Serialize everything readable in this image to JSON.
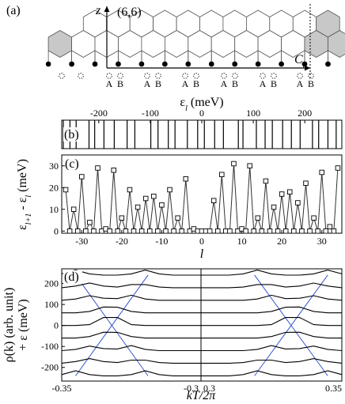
{
  "diagram": {
    "label": "(a)",
    "axis": "z",
    "index": "(6,6)",
    "vector": "C",
    "vector_sub": "h",
    "sites": [
      "A",
      "B"
    ]
  },
  "chart_data": [
    {
      "type": "spectrum",
      "panel_label": "(b)",
      "xlabel": [
        {
          "text": "ε"
        },
        {
          "text": "l",
          "sub": true
        },
        {
          "text": " (meV)"
        }
      ],
      "values": [
        -269,
        -256,
        -244,
        -219,
        -208,
        -190,
        -170,
        -145,
        -130,
        -99,
        -85,
        -65,
        -52,
        -28,
        -8,
        5,
        25,
        42,
        71,
        80,
        106,
        123,
        137,
        157,
        174,
        191,
        215,
        227,
        245,
        261
      ],
      "color": "#000000",
      "xlim": [
        -272,
        272
      ],
      "xticks": [
        -200,
        -100,
        0,
        100,
        200
      ]
    },
    {
      "type": "line",
      "panel_label": "(c)",
      "ylabel": [
        {
          "text": "ε"
        },
        {
          "text": "l+1",
          "sub": true
        },
        {
          "text": " - ε"
        },
        {
          "text": "l",
          "sub": true
        },
        {
          "text": " (meV)"
        }
      ],
      "xlabel": "l",
      "x": [
        -34,
        -33,
        -32,
        -31,
        -30,
        -29,
        -28,
        -27,
        -26,
        -25,
        -24,
        -23,
        -22,
        -21,
        -20,
        -19,
        -18,
        -17,
        -16,
        -15,
        -14,
        -13,
        -12,
        -11,
        -10,
        -9,
        -8,
        -7,
        -6,
        -5,
        -4,
        -3,
        -2,
        -1,
        0,
        1,
        2,
        3,
        4,
        5,
        6,
        7,
        8,
        9,
        10,
        11,
        12,
        13,
        14,
        15,
        16,
        17,
        18,
        19,
        20,
        21,
        22,
        23,
        24,
        25,
        26,
        27,
        28,
        29,
        30,
        31,
        32,
        33,
        34
      ],
      "values": [
        19,
        0,
        10,
        0,
        25,
        0,
        4,
        0,
        29,
        0,
        1,
        0,
        28,
        0,
        6,
        0,
        19,
        0,
        11,
        0,
        15,
        0,
        16,
        0,
        12,
        0,
        19,
        0,
        6,
        0,
        24,
        0,
        1,
        0,
        0,
        0,
        0,
        14,
        0,
        26,
        0,
        0,
        31,
        0,
        1,
        0,
        30,
        0,
        6,
        0,
        23,
        0,
        11,
        0,
        17,
        0,
        18,
        0,
        13,
        0,
        22,
        0,
        6,
        0,
        27,
        0,
        2,
        0,
        29
      ],
      "color": "#333333",
      "xlim": [
        -35,
        35
      ],
      "xticks": [
        -30,
        -20,
        -10,
        0,
        10,
        20,
        30
      ],
      "ylim": [
        -1,
        35
      ],
      "yticks": [
        0,
        10,
        20,
        30
      ]
    },
    {
      "type": "curves",
      "panel_label": "(d)",
      "ylabel": [
        "ρ(k) (arb. unit)",
        "+ ε (meV)"
      ],
      "xlabel": "kT/2π",
      "x": [
        -0.35,
        -0.345,
        -0.34,
        -0.335,
        -0.33,
        -0.325,
        -0.32,
        -0.315,
        -0.31,
        -0.305,
        -0.3,
        0.3,
        0.305,
        0.31,
        0.315,
        0.32,
        0.325,
        0.33,
        0.335,
        0.34,
        0.345,
        0.35
      ],
      "series": [
        {
          "color": "#000000",
          "values": [
            246,
            264,
            246,
            240,
            240,
            246,
            264,
            246,
            240,
            240,
            240,
            240,
            240,
            240,
            246,
            264,
            246,
            240,
            240,
            246,
            264,
            246
          ]
        },
        {
          "color": "#000000",
          "values": [
            180,
            188,
            202,
            188,
            183,
            195,
            195,
            183,
            180,
            180,
            180,
            180,
            180,
            180,
            183,
            195,
            195,
            183,
            188,
            202,
            188,
            180
          ]
        },
        {
          "color": "#000000",
          "values": [
            120,
            126,
            142,
            130,
            128,
            144,
            126,
            120,
            120,
            120,
            120,
            120,
            120,
            120,
            120,
            126,
            144,
            128,
            130,
            142,
            126,
            120
          ]
        },
        {
          "color": "#000000",
          "values": [
            60,
            60,
            67,
            88,
            87,
            67,
            60,
            60,
            60,
            60,
            60,
            60,
            60,
            60,
            60,
            60,
            67,
            87,
            88,
            67,
            60,
            60
          ]
        },
        {
          "color": "#000000",
          "values": [
            0,
            0,
            4,
            38,
            38,
            4,
            0,
            0,
            0,
            0,
            0,
            0,
            0,
            0,
            0,
            0,
            4,
            38,
            38,
            4,
            0,
            0
          ]
        },
        {
          "color": "#000000",
          "values": [
            -60,
            -60,
            -53,
            -32,
            -33,
            -53,
            -60,
            -60,
            -60,
            -60,
            -60,
            -60,
            -60,
            -60,
            -60,
            -60,
            -53,
            -33,
            -32,
            -53,
            -60,
            -60
          ]
        },
        {
          "color": "#000000",
          "values": [
            -120,
            -114,
            -98,
            -110,
            -112,
            -96,
            -114,
            -120,
            -120,
            -120,
            -120,
            -120,
            -120,
            -120,
            -120,
            -114,
            -96,
            -112,
            -110,
            -98,
            -114,
            -120
          ]
        },
        {
          "color": "#000000",
          "values": [
            -180,
            -172,
            -158,
            -172,
            -177,
            -165,
            -165,
            -177,
            -180,
            -180,
            -180,
            -180,
            -180,
            -180,
            -177,
            -165,
            -165,
            -177,
            -172,
            -158,
            -172,
            -180
          ]
        },
        {
          "color": "#000000",
          "values": [
            -234,
            -216,
            -234,
            -240,
            -240,
            -234,
            -216,
            -234,
            -240,
            -240,
            -240,
            -240,
            -240,
            -240,
            -234,
            -216,
            -234,
            -240,
            -240,
            -234,
            -216,
            -234
          ]
        }
      ],
      "guides": [
        {
          "color": "#3355cc",
          "x": [
            -0.345,
            -0.319
          ],
          "y": [
            240,
            -240
          ]
        },
        {
          "color": "#3355cc",
          "x": [
            -0.319,
            -0.345
          ],
          "y": [
            240,
            -240
          ]
        },
        {
          "color": "#3355cc",
          "x": [
            0.345,
            0.319
          ],
          "y": [
            240,
            -240
          ]
        },
        {
          "color": "#3355cc",
          "x": [
            0.319,
            0.345
          ],
          "y": [
            240,
            -240
          ]
        }
      ],
      "xlim": [
        [
          -0.35,
          -0.3
        ],
        [
          0.3,
          0.35
        ]
      ],
      "xticks": [
        -0.35,
        -0.3,
        0.3,
        0.35
      ],
      "ylim": [
        -265,
        270
      ],
      "yticks": [
        -200,
        -100,
        0,
        100,
        200
      ]
    }
  ]
}
